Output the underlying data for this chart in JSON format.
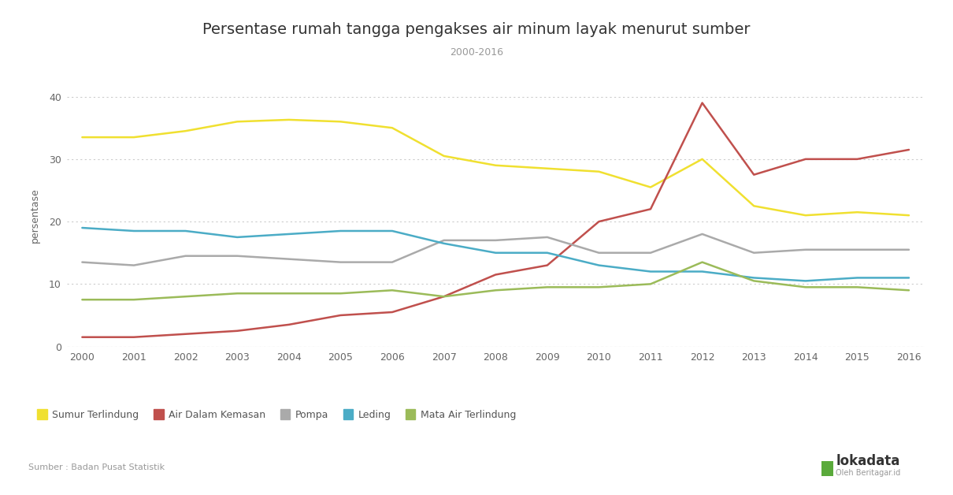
{
  "title": "Persentase rumah tangga pengakses air minum layak menurut sumber",
  "subtitle": "2000-2016",
  "ylabel": "persentase",
  "source": "Sumber : Badan Pusat Statistik",
  "years": [
    2000,
    2001,
    2002,
    2003,
    2004,
    2005,
    2006,
    2007,
    2008,
    2009,
    2010,
    2011,
    2012,
    2013,
    2014,
    2015,
    2016
  ],
  "series": {
    "Sumur Terlindung": {
      "color": "#f0e030",
      "values": [
        33.5,
        33.5,
        34.5,
        36.0,
        36.3,
        36.0,
        35.0,
        30.5,
        29.0,
        28.5,
        28.0,
        25.5,
        30.0,
        22.5,
        21.0,
        21.5,
        21.0
      ]
    },
    "Air Dalam Kemasan": {
      "color": "#c0504d",
      "values": [
        1.5,
        1.5,
        2.0,
        2.5,
        3.5,
        5.0,
        5.5,
        8.0,
        11.5,
        13.0,
        20.0,
        22.0,
        39.0,
        27.5,
        30.0,
        30.0,
        31.5
      ]
    },
    "Pompa": {
      "color": "#aaaaaa",
      "values": [
        13.5,
        13.0,
        14.5,
        14.5,
        14.0,
        13.5,
        13.5,
        17.0,
        17.0,
        17.5,
        15.0,
        15.0,
        18.0,
        15.0,
        15.5,
        15.5,
        15.5
      ]
    },
    "Leding": {
      "color": "#4bacc6",
      "values": [
        19.0,
        18.5,
        18.5,
        17.5,
        18.0,
        18.5,
        18.5,
        16.5,
        15.0,
        15.0,
        13.0,
        12.0,
        12.0,
        11.0,
        10.5,
        11.0,
        11.0
      ]
    },
    "Mata Air Terlindung": {
      "color": "#9bbb59",
      "values": [
        7.5,
        7.5,
        8.0,
        8.5,
        8.5,
        8.5,
        9.0,
        8.0,
        9.0,
        9.5,
        9.5,
        10.0,
        13.5,
        10.5,
        9.5,
        9.5,
        9.0
      ]
    }
  },
  "ylim": [
    0,
    42
  ],
  "yticks": [
    0,
    10,
    20,
    30,
    40
  ],
  "background_color": "#ffffff",
  "grid_color": "#cccccc",
  "title_fontsize": 14,
  "subtitle_fontsize": 9,
  "axis_fontsize": 9,
  "ylabel_fontsize": 9,
  "legend_fontsize": 9
}
